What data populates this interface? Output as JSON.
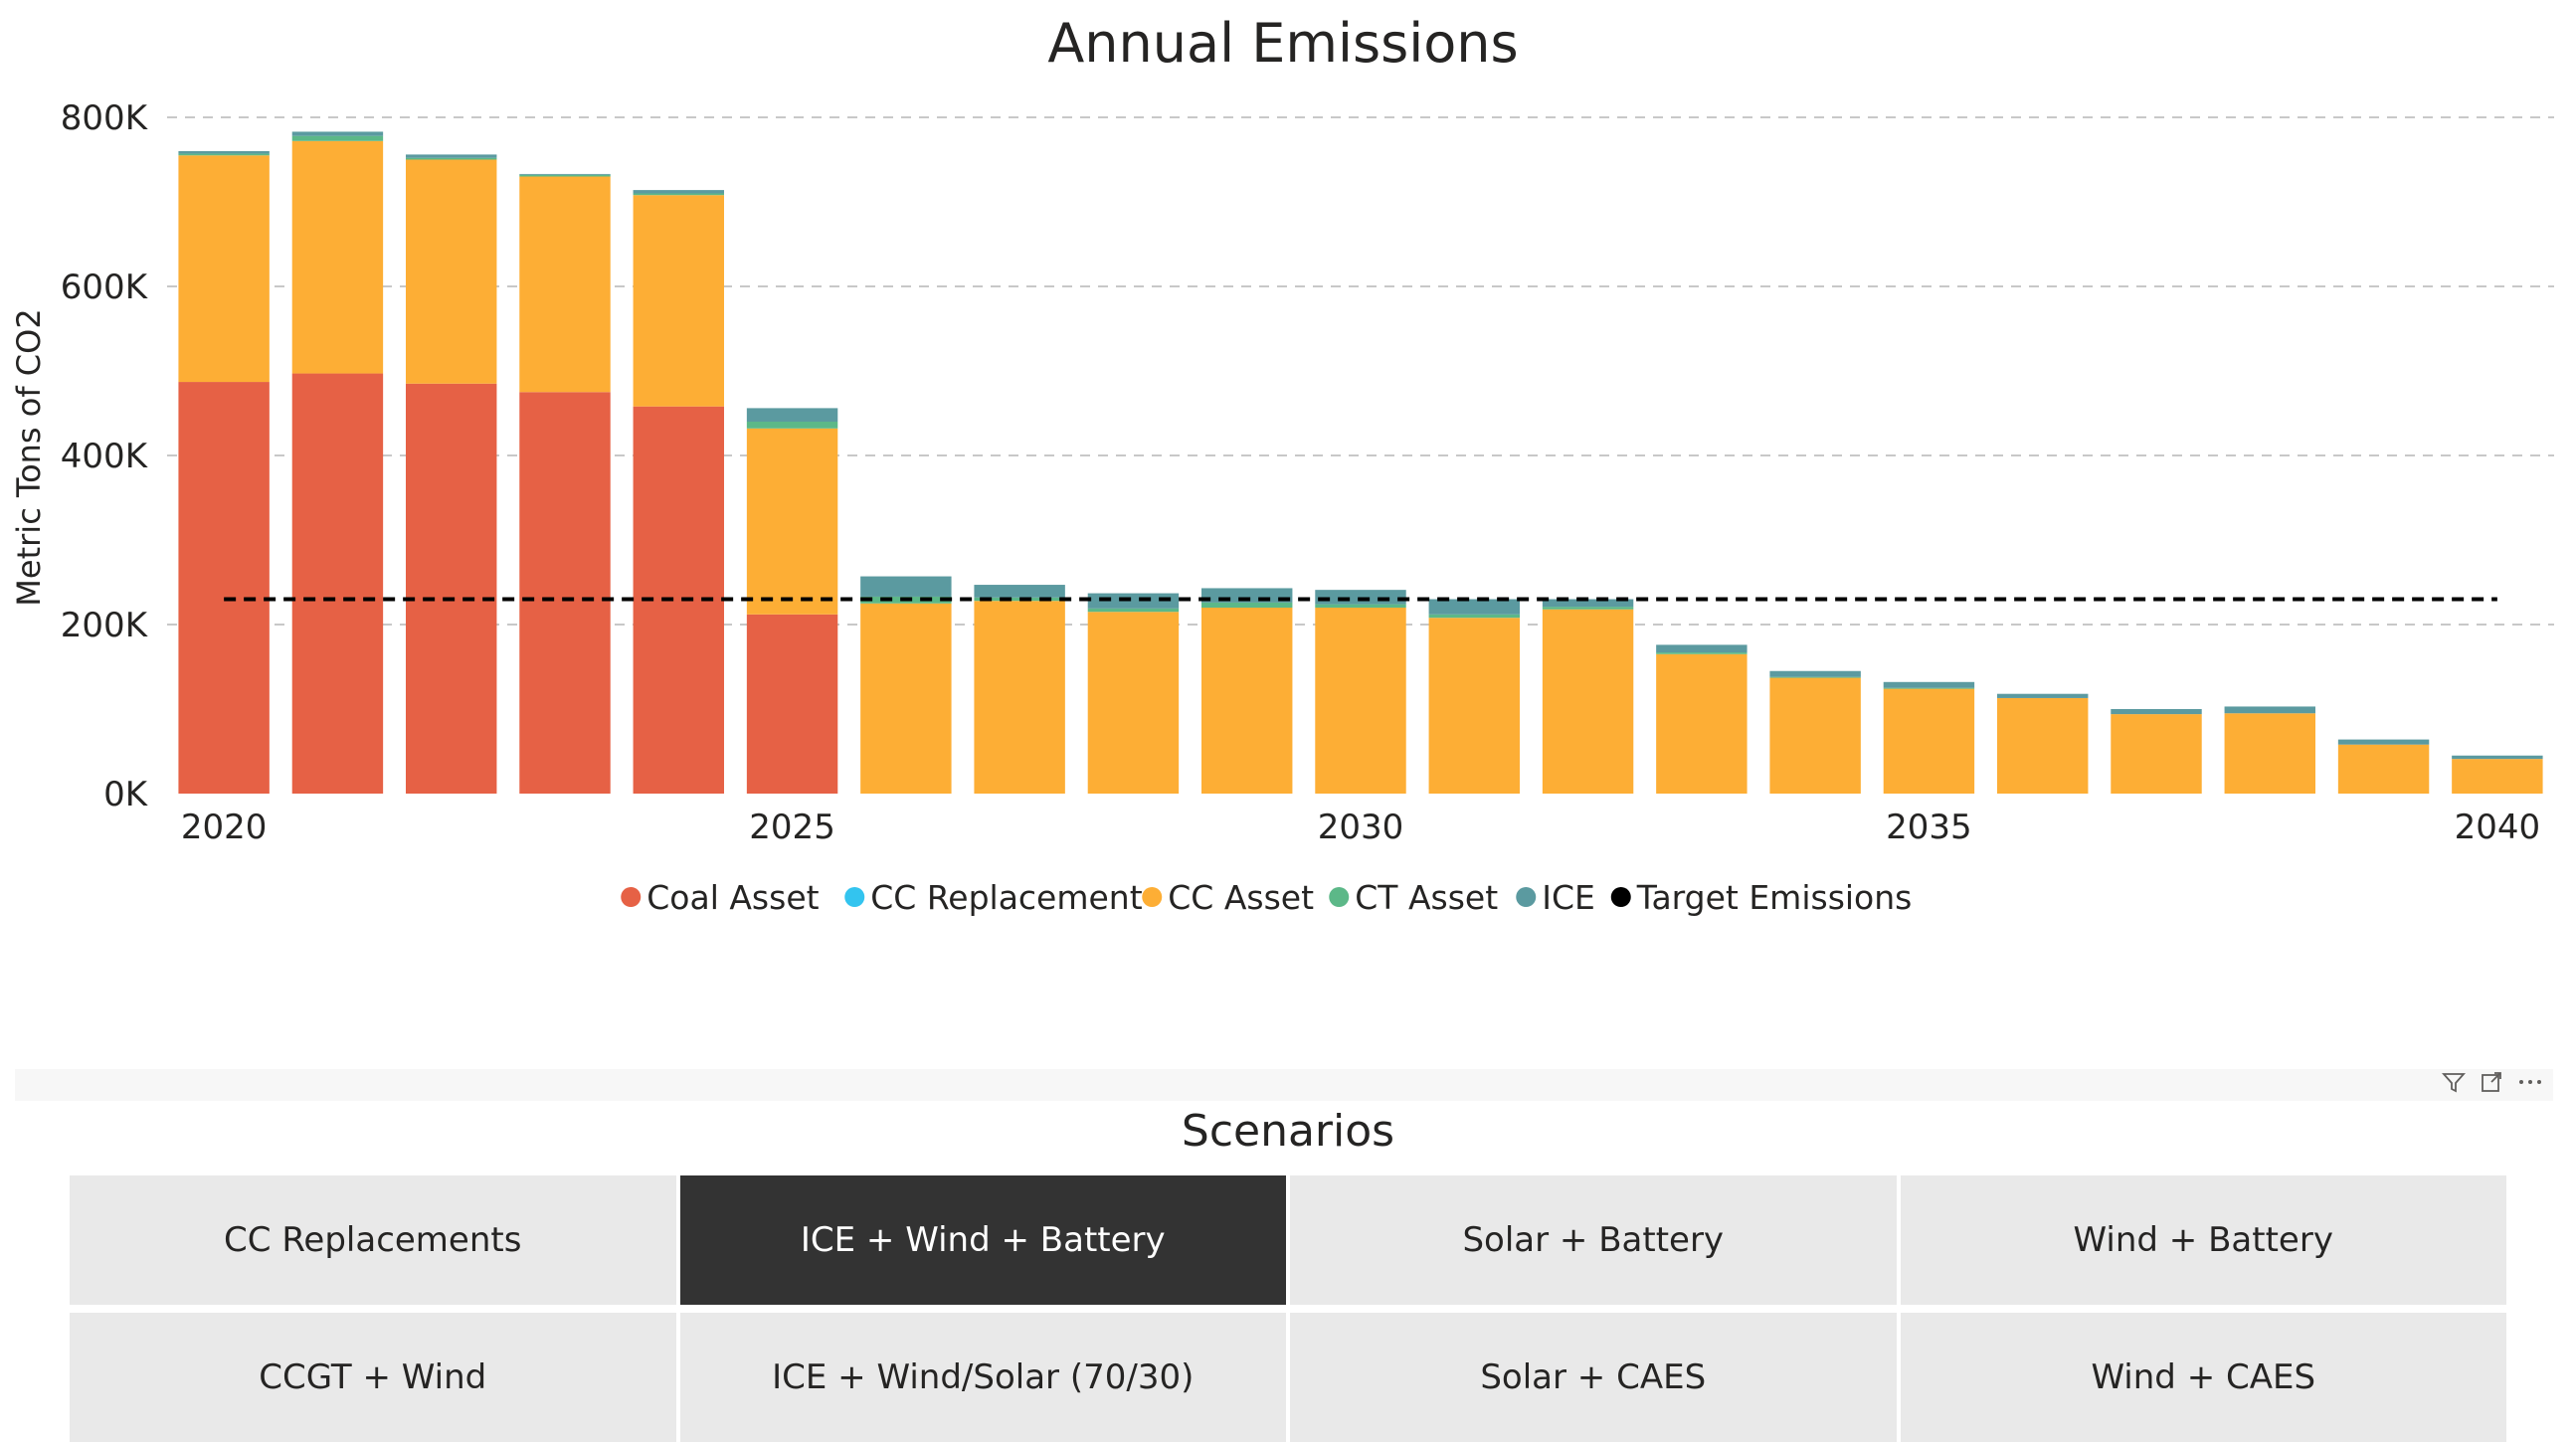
{
  "chart_data": {
    "type": "bar",
    "stacked": true,
    "title": "Annual Emissions",
    "ylabel": "Metric Tons of CO2",
    "xlabel": "",
    "ylim": [
      0,
      800000
    ],
    "yticks": [
      "0K",
      "200K",
      "400K",
      "600K",
      "800K"
    ],
    "ytick_values": [
      0,
      200000,
      400000,
      600000,
      800000
    ],
    "xticks": [
      "2020",
      "2025",
      "2030",
      "2035",
      "2040"
    ],
    "xtick_values": [
      2020,
      2025,
      2030,
      2035,
      2040
    ],
    "grid": true,
    "legend_position": "bottom",
    "categories": [
      2020,
      2021,
      2022,
      2023,
      2024,
      2025,
      2026,
      2027,
      2028,
      2029,
      2030,
      2031,
      2032,
      2033,
      2034,
      2035,
      2036,
      2037,
      2038,
      2039,
      2040
    ],
    "series": [
      {
        "name": "Coal Asset",
        "color": "#e66145",
        "values": [
          487000,
          497000,
          485000,
          475000,
          458000,
          212000,
          0,
          0,
          0,
          0,
          0,
          0,
          0,
          0,
          0,
          0,
          0,
          0,
          0,
          0,
          0
        ]
      },
      {
        "name": "CC Replacement",
        "color": "#33c4ef",
        "values": [
          0,
          0,
          0,
          0,
          0,
          0,
          0,
          0,
          0,
          0,
          0,
          0,
          0,
          0,
          0,
          0,
          0,
          0,
          0,
          0,
          0
        ]
      },
      {
        "name": "CC Asset",
        "color": "#fdae35",
        "values": [
          268000,
          275000,
          265000,
          255000,
          250000,
          220000,
          225000,
          228000,
          215000,
          220000,
          220000,
          208000,
          218000,
          165000,
          137000,
          124000,
          113000,
          94000,
          95000,
          58000,
          41000
        ]
      },
      {
        "name": "CT Asset",
        "color": "#5cb888",
        "values": [
          2000,
          6000,
          2000,
          2000,
          2000,
          8000,
          8000,
          4000,
          4000,
          6000,
          4000,
          4000,
          3000,
          2000,
          1000,
          1000,
          0,
          0,
          0,
          0,
          0
        ]
      },
      {
        "name": "ICE",
        "color": "#5b9aa0",
        "values": [
          3000,
          5000,
          4000,
          1000,
          4000,
          16000,
          24000,
          15000,
          18000,
          17000,
          17000,
          18000,
          9000,
          9000,
          7000,
          7000,
          5000,
          6000,
          8000,
          6000,
          4000
        ]
      }
    ],
    "target": {
      "name": "Target Emissions",
      "color": "#000000",
      "value": 230000,
      "x_start": 2020,
      "x_end": 2040
    }
  },
  "slicer": {
    "title": "Scenarios",
    "icons": [
      "filter-icon",
      "focus-mode-icon",
      "more-options-icon"
    ],
    "items": [
      {
        "label": "CC Replacements",
        "selected": false
      },
      {
        "label": "ICE + Wind + Battery",
        "selected": true
      },
      {
        "label": "Solar + Battery",
        "selected": false
      },
      {
        "label": "Wind + Battery",
        "selected": false
      },
      {
        "label": "CCGT + Wind",
        "selected": false
      },
      {
        "label": "ICE + Wind/Solar (70/30)",
        "selected": false
      },
      {
        "label": "Solar + CAES",
        "selected": false
      },
      {
        "label": "Wind + CAES",
        "selected": false
      }
    ]
  }
}
